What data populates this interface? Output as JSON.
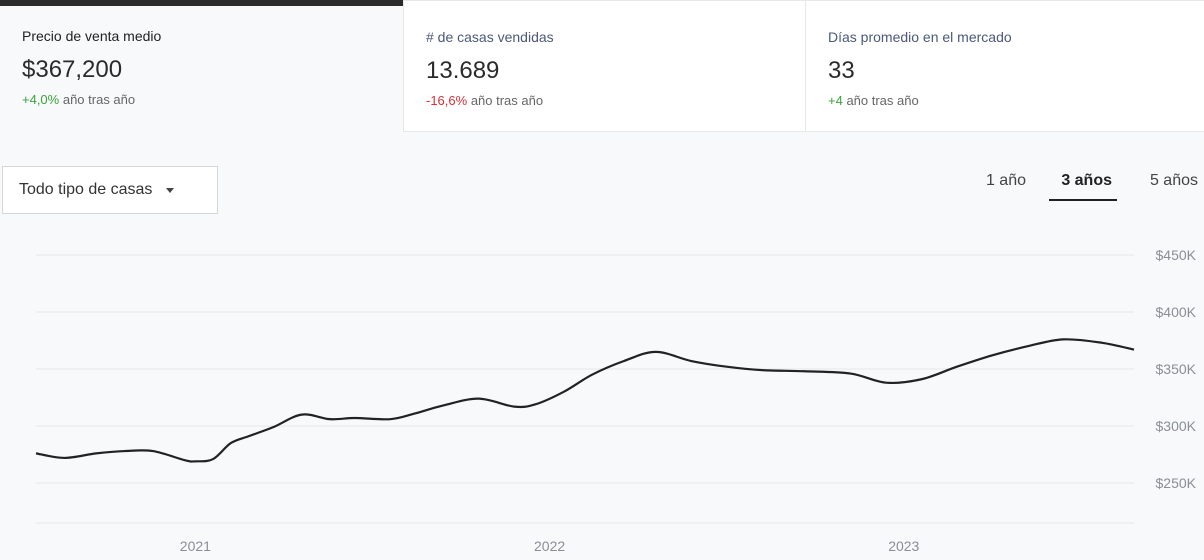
{
  "metrics": [
    {
      "label": "Precio de venta medio",
      "value": "$367,200",
      "change": "+4,0%",
      "change_suffix": " año tras año",
      "change_color": "#3ca33c"
    },
    {
      "label": "# de casas vendidas",
      "value": "13.689",
      "change": "-16,6%",
      "change_suffix": " año tras año",
      "change_color": "#d9303a"
    },
    {
      "label": "Días promedio en el mercado",
      "value": "33",
      "change": "+4",
      "change_suffix": " año tras año",
      "change_color": "#3ca33c"
    }
  ],
  "filter": {
    "selected": "Todo tipo de casas"
  },
  "ranges": [
    "1 año",
    "3 años",
    "5 años"
  ],
  "selected_range": "3 años",
  "chart_data": {
    "type": "line",
    "x_ticks": [
      "2021",
      "2022",
      "2023"
    ],
    "y_ticks": [
      "$250K",
      "$300K",
      "$350K",
      "$400K",
      "$450K"
    ],
    "ylim": [
      250000,
      450000
    ],
    "xlim": [
      2020.55,
      2023.65
    ],
    "grid": true,
    "series": [
      {
        "color": "#222222",
        "x": [
          2020.55,
          2020.63,
          2020.72,
          2020.8,
          2020.88,
          2020.97,
          2021.0,
          2021.05,
          2021.1,
          2021.15,
          2021.22,
          2021.3,
          2021.38,
          2021.45,
          2021.55,
          2021.62,
          2021.7,
          2021.8,
          2021.9,
          2021.96,
          2022.04,
          2022.12,
          2022.21,
          2022.3,
          2022.4,
          2022.5,
          2022.6,
          2022.72,
          2022.85,
          2022.95,
          2023.05,
          2023.15,
          2023.25,
          2023.35,
          2023.45,
          2023.56,
          2023.65
        ],
        "y": [
          276000,
          272000,
          276000,
          278000,
          278000,
          270000,
          269000,
          271000,
          285000,
          291000,
          299000,
          310000,
          306000,
          307000,
          306000,
          311000,
          318000,
          324000,
          317000,
          319000,
          330000,
          345000,
          357000,
          365000,
          357000,
          352000,
          349000,
          348000,
          346000,
          338000,
          341000,
          352000,
          362000,
          370000,
          376000,
          373000,
          367000
        ]
      }
    ]
  }
}
